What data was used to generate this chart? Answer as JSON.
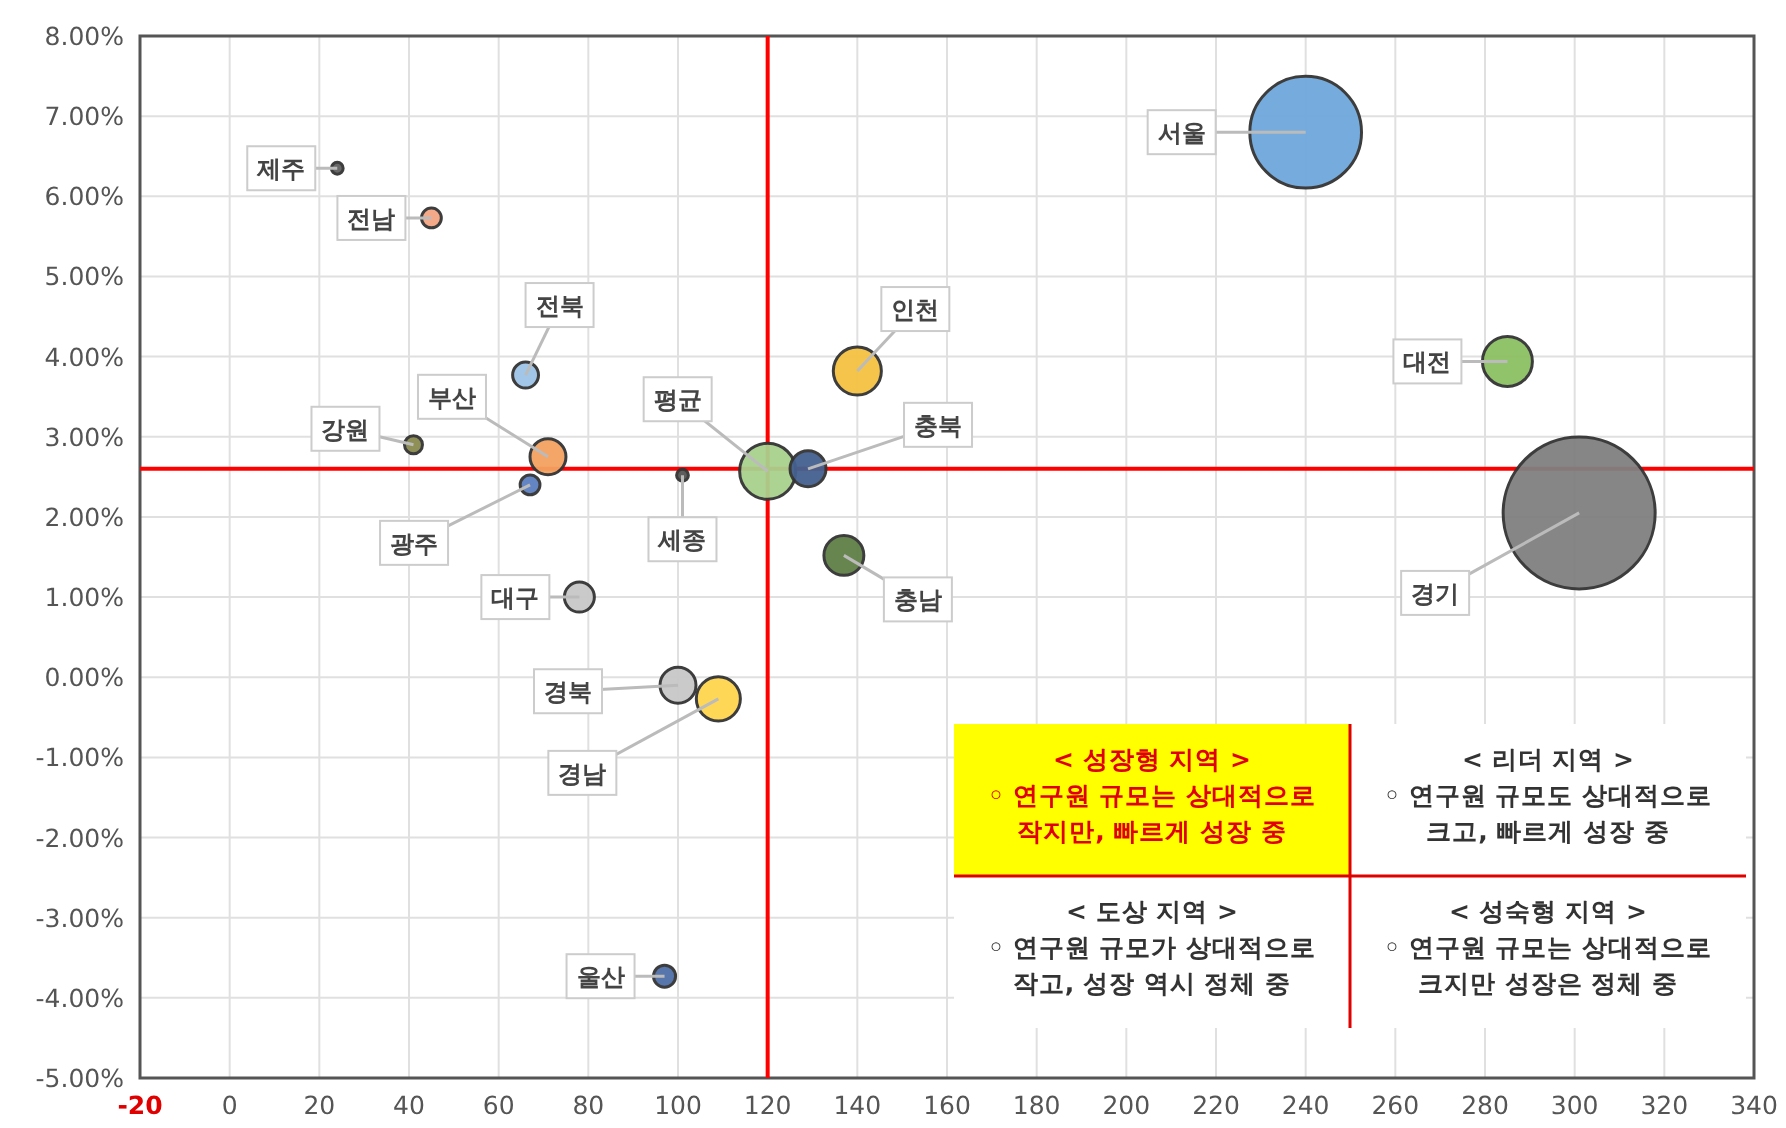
{
  "chart_data": {
    "type": "bubble",
    "xlim": [
      -20,
      340
    ],
    "xticks": [
      -20,
      0,
      20,
      40,
      60,
      80,
      100,
      120,
      140,
      160,
      180,
      200,
      220,
      240,
      260,
      280,
      300,
      320,
      340
    ],
    "ylim": [
      -5,
      8
    ],
    "yticks": [
      {
        "value": 8,
        "label": "8.00%"
      },
      {
        "value": 7,
        "label": "7.00%"
      },
      {
        "value": 6,
        "label": "6.00%"
      },
      {
        "value": 5,
        "label": "5.00%"
      },
      {
        "value": 4,
        "label": "4.00%"
      },
      {
        "value": 3,
        "label": "3.00%"
      },
      {
        "value": 2,
        "label": "2.00%"
      },
      {
        "value": 1,
        "label": "1.00%"
      },
      {
        "value": 0,
        "label": "0.00%"
      },
      {
        "value": -1,
        "label": "-1.00%"
      },
      {
        "value": -2,
        "label": "-2.00%"
      },
      {
        "value": -3,
        "label": "-3.00%"
      },
      {
        "value": -4,
        "label": "-4.00%"
      },
      {
        "value": -5,
        "label": "-5.00%"
      }
    ],
    "grid": true,
    "ref_lines": [
      {
        "axis": "x",
        "value": 120,
        "color": "#ff0000"
      },
      {
        "axis": "y",
        "value": 2.6,
        "color": "#ff0000"
      }
    ],
    "series": [
      {
        "name": "제주",
        "color": "#606060",
        "x": [
          24
        ],
        "values": [
          6.35
        ],
        "sizes": [
          0.006
        ]
      },
      {
        "name": "전남",
        "color": "#f4a582",
        "x": [
          45
        ],
        "values": [
          5.73
        ],
        "sizes": [
          0.017
        ]
      },
      {
        "name": "전북",
        "color": "#9dc3e6",
        "x": [
          66
        ],
        "values": [
          3.77
        ],
        "sizes": [
          0.029
        ]
      },
      {
        "name": "강원",
        "color": "#8a8a50",
        "x": [
          41
        ],
        "values": [
          2.9
        ],
        "sizes": [
          0.014
        ]
      },
      {
        "name": "부산",
        "color": "#f4a261",
        "x": [
          71
        ],
        "values": [
          2.75
        ],
        "sizes": [
          0.056
        ]
      },
      {
        "name": "광주",
        "color": "#5b7fc0",
        "x": [
          67
        ],
        "values": [
          2.4
        ],
        "sizes": [
          0.017
        ]
      },
      {
        "name": "세종",
        "color": "#555555",
        "x": [
          101
        ],
        "values": [
          2.52
        ],
        "sizes": [
          0.006
        ]
      },
      {
        "name": "평균",
        "color": "#a9d18e",
        "x": [
          120
        ],
        "values": [
          2.57
        ],
        "sizes": [
          0.136
        ]
      },
      {
        "name": "충북",
        "color": "#44608f",
        "x": [
          129
        ],
        "values": [
          2.6
        ],
        "sizes": [
          0.056
        ]
      },
      {
        "name": "인천",
        "color": "#f5c242",
        "x": [
          140
        ],
        "values": [
          3.82
        ],
        "sizes": [
          0.1
        ]
      },
      {
        "name": "충남",
        "color": "#5f7f46",
        "x": [
          137
        ],
        "values": [
          1.52
        ],
        "sizes": [
          0.069
        ]
      },
      {
        "name": "대구",
        "color": "#c8c8c8",
        "x": [
          78
        ],
        "values": [
          1.0
        ],
        "sizes": [
          0.039
        ]
      },
      {
        "name": "경북",
        "color": "#c8c8c8",
        "x": [
          100
        ],
        "values": [
          -0.1
        ],
        "sizes": [
          0.056
        ]
      },
      {
        "name": "경남",
        "color": "#ffd54f",
        "x": [
          109
        ],
        "values": [
          -0.27
        ],
        "sizes": [
          0.084
        ]
      },
      {
        "name": "울산",
        "color": "#4f6fa8",
        "x": [
          97
        ],
        "values": [
          -3.73
        ],
        "sizes": [
          0.021
        ]
      },
      {
        "name": "서울",
        "color": "#6fa8dc",
        "x": [
          240
        ],
        "values": [
          6.8
        ],
        "sizes": [
          0.54
        ]
      },
      {
        "name": "대전",
        "color": "#8cc063",
        "x": [
          285
        ],
        "values": [
          3.94
        ],
        "sizes": [
          0.108
        ]
      },
      {
        "name": "경기",
        "color": "#808080",
        "x": [
          301
        ],
        "values": [
          2.05
        ],
        "sizes": [
          1
        ]
      }
    ],
    "annotations": [
      "< 성장형 지역 >\n◦ 연구원 규모는 상대적으로\n작지만, 빠르게 성장 중",
      "< 리더 지역 >\n◦ 연구원 규모도 상대적으로\n크고, 빠르게 성장 중",
      "< 도상 지역 >\n◦ 연구원 규모가 상대적으로\n작고, 성장 역시 정체 중",
      "< 성숙형 지역 >\n◦ 연구원 규모는 상대적으로\n크지만 성장은 정체 중"
    ]
  }
}
